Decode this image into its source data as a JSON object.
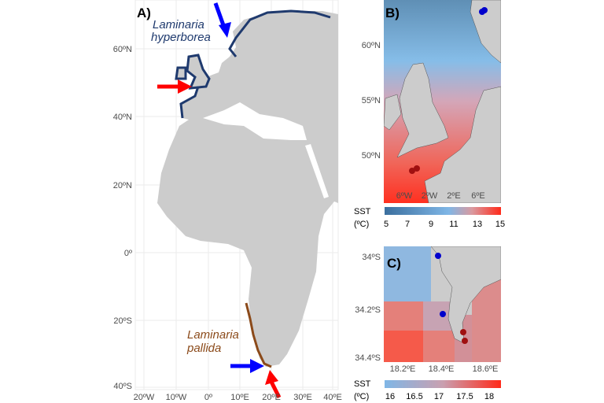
{
  "panels": {
    "a": {
      "label": "A)",
      "lat_ticks": [
        "60ºN",
        "40ºN",
        "20ºN",
        "0º",
        "20ºS",
        "40ºS"
      ],
      "lon_ticks": [
        "20ºW",
        "10ºW",
        "0º",
        "10ºE",
        "20ºE",
        "30ºE",
        "40ºE"
      ],
      "species_north": [
        "Laminaria",
        "hyperborea"
      ],
      "species_south": [
        "Laminaria",
        "pallida"
      ]
    },
    "b": {
      "label": "B)",
      "lat_ticks": [
        "60ºN",
        "55ºN",
        "50ºN"
      ],
      "lon_ticks": [
        "6ºW",
        "2ºW",
        "2ºE",
        "6ºE"
      ],
      "legend_title": [
        "SST",
        "(ºC)"
      ],
      "legend_ticks": [
        "5",
        "7",
        "9",
        "11",
        "13",
        "15"
      ]
    },
    "c": {
      "label": "C)",
      "lat_ticks": [
        "34ºS",
        "34.2ºS",
        "34.4ºS"
      ],
      "lon_ticks": [
        "18.2ºE",
        "18.4ºE",
        "18.6ºE"
      ],
      "legend_title": [
        "SST",
        "(ºC)"
      ],
      "legend_ticks": [
        "16",
        "16.5",
        "17",
        "17.5",
        "18"
      ]
    }
  },
  "colors": {
    "north_range": "#1f3a6e",
    "south_range": "#8b4a1a",
    "arrow_cold": "#0000ff",
    "arrow_warm": "#ff0000",
    "land": "#cccccc"
  }
}
